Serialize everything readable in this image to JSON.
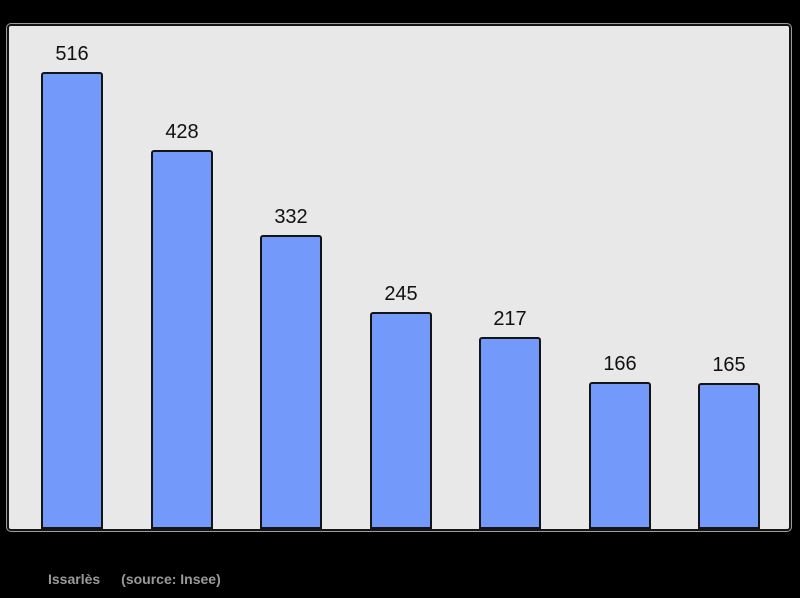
{
  "page": {
    "background": "#000000"
  },
  "chart_data": {
    "type": "bar",
    "values": [
      516,
      428,
      332,
      245,
      217,
      166,
      165
    ],
    "categories": [],
    "title": "",
    "xlabel": "",
    "ylabel": "",
    "grid": false,
    "legend": false,
    "data_labels_shown": true,
    "colors": {
      "bar_fill": "#7399fa",
      "bar_border": "#141414",
      "panel_background": "#e8e8e8",
      "panel_border": "#141414",
      "value_label": "#111111",
      "footer_text": "#9a9a9a",
      "page_background": "#000000"
    }
  },
  "footer": {
    "commune": "Issarlès",
    "source": "(source: Insee)"
  }
}
